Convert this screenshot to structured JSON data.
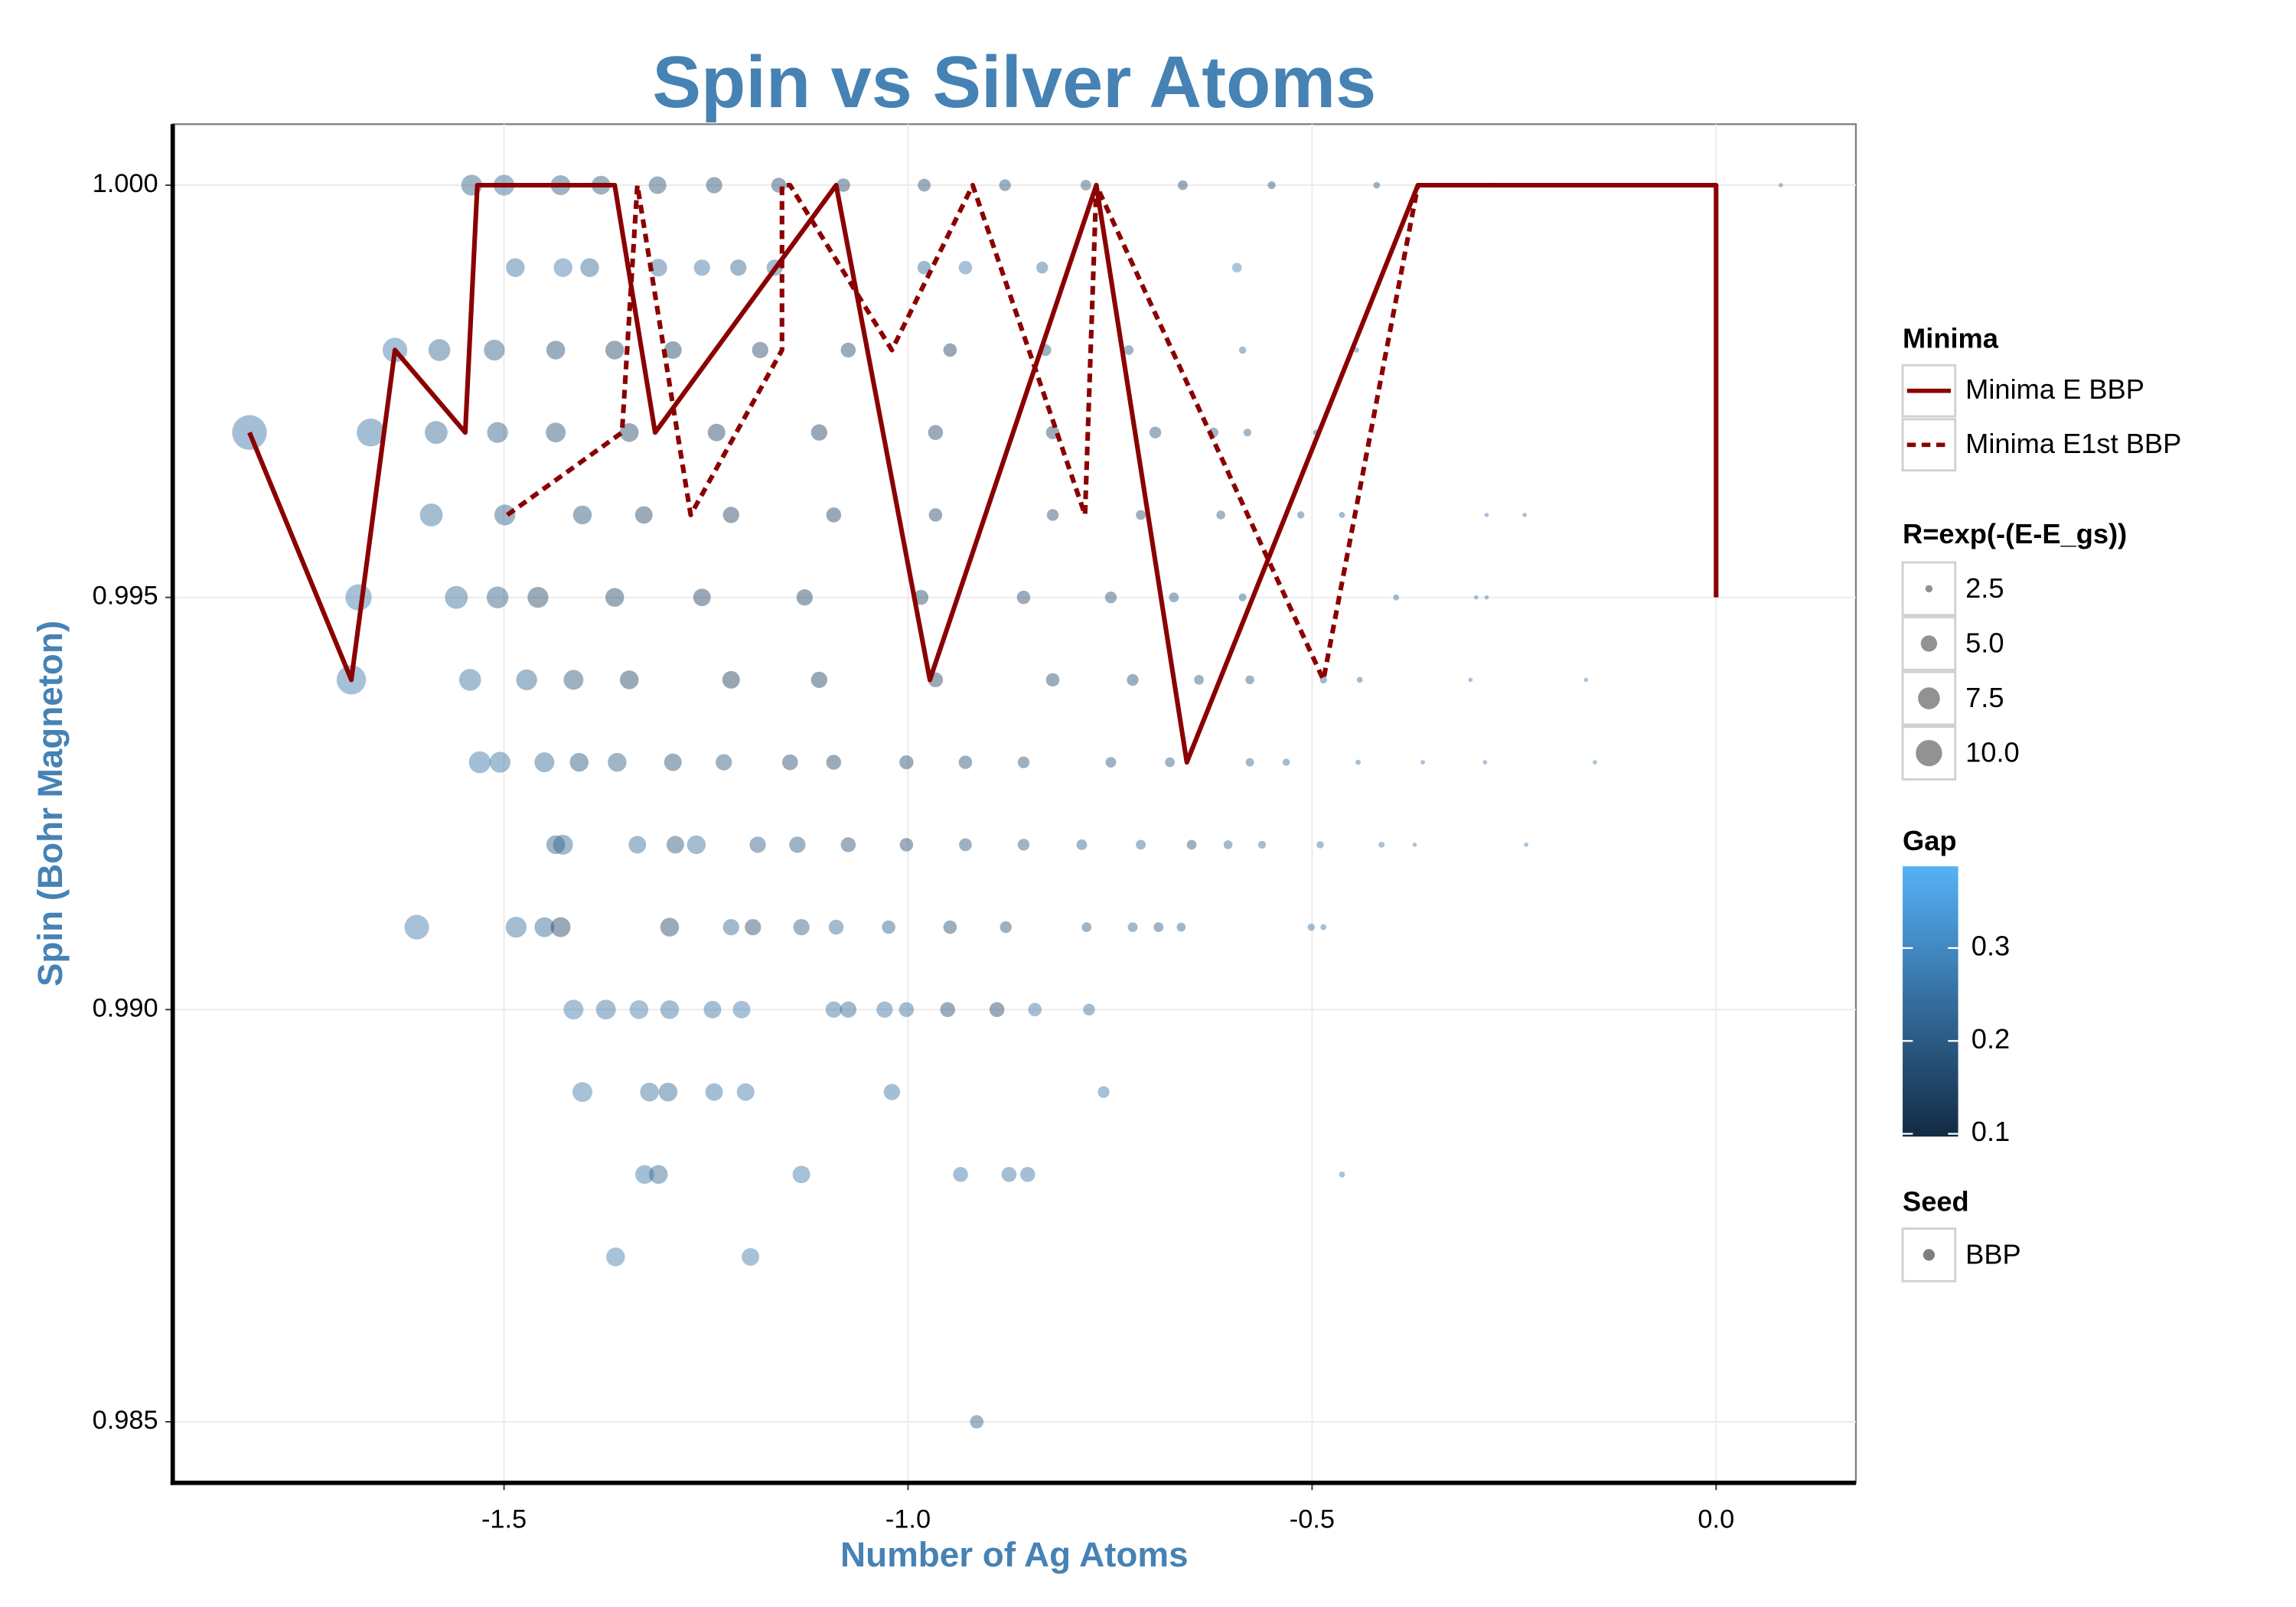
{
  "chart_data": {
    "type": "scatter",
    "title": "Spin vs Silver Atoms",
    "x_label": "Number of Ag Atoms",
    "y_label": "Spin (Bohr Magneton)",
    "xlim": [
      -1.91,
      0.173
    ],
    "ylim": [
      0.98426,
      1.00074
    ],
    "xticks": [
      -1.5,
      {
        "value": -1.0,
        "label": "-1.0"
      },
      -0.5,
      {
        "value": 0.0,
        "label": "0.0"
      }
    ],
    "yticks": [
      {
        "value": 0.985,
        "label": "0.985"
      },
      {
        "value": 0.99,
        "label": "0.990"
      },
      {
        "value": 0.995,
        "label": "0.995"
      },
      {
        "value": 1.0,
        "label": "1.000"
      }
    ],
    "grid": true,
    "series": [
      {
        "name": "BBP",
        "opacity": 0.45,
        "x": [
          -1.54,
          -1.5,
          -1.43,
          -1.38,
          -1.31,
          -1.24,
          -1.16,
          -1.08,
          -0.98,
          -0.88,
          -0.78,
          -0.66,
          -0.55,
          -0.42,
          -0.28,
          0.08,
          -1.486,
          -1.427,
          -1.394,
          -1.309,
          -1.255,
          -1.21,
          -1.165,
          -0.98,
          -0.929,
          -0.834,
          -0.593,
          -1.635,
          -1.58,
          -1.512,
          -1.436,
          -1.363,
          -1.291,
          -1.183,
          -1.074,
          -0.948,
          -0.83,
          -0.727,
          -0.586,
          -0.445,
          -1.815,
          -1.665,
          -1.584,
          -1.508,
          -1.436,
          -1.345,
          -1.237,
          -1.11,
          -0.966,
          -0.821,
          -0.694,
          -0.622,
          -0.58,
          -0.495,
          -1.59,
          -1.499,
          -1.403,
          -1.327,
          -1.219,
          -1.092,
          -0.966,
          -0.821,
          -0.712,
          -0.613,
          -0.514,
          -0.463,
          -0.284,
          -0.237,
          -1.68,
          -1.559,
          -1.508,
          -1.458,
          -1.363,
          -1.255,
          -1.128,
          -0.984,
          -0.857,
          -0.749,
          -0.671,
          -0.586,
          -0.396,
          -0.297,
          -0.284,
          -1.689,
          -1.542,
          -1.472,
          -1.414,
          -1.345,
          -1.219,
          -1.11,
          -0.966,
          -0.821,
          -0.722,
          -0.64,
          -0.577,
          -0.486,
          -0.441,
          -0.304,
          -0.161,
          -1.53,
          -1.505,
          -1.45,
          -1.407,
          -1.36,
          -1.291,
          -1.228,
          -1.146,
          -1.092,
          -1.002,
          -0.929,
          -0.857,
          -0.749,
          -0.676,
          -0.577,
          -0.532,
          -0.443,
          -0.363,
          -0.286,
          -0.15,
          -1.436,
          -1.427,
          -1.335,
          -1.288,
          -1.262,
          -1.186,
          -1.137,
          -1.074,
          -1.002,
          -0.929,
          -0.857,
          -0.785,
          -0.712,
          -0.649,
          -0.604,
          -0.562,
          -0.49,
          -0.414,
          -0.373,
          -0.235,
          -1.608,
          -1.485,
          -1.45,
          -1.43,
          -1.295,
          -1.219,
          -1.192,
          -1.132,
          -1.089,
          -1.024,
          -0.948,
          -0.879,
          -0.779,
          -0.722,
          -0.69,
          -0.662,
          -0.501,
          -0.486,
          -1.414,
          -1.374,
          -1.333,
          -1.295,
          -1.242,
          -1.206,
          -1.092,
          -1.074,
          -1.029,
          -1.002,
          -0.951,
          -0.89,
          -0.843,
          -0.776,
          -1.403,
          -1.32,
          -1.297,
          -1.24,
          -1.201,
          -1.02,
          -0.758,
          -1.326,
          -1.309,
          -1.132,
          -0.935,
          -0.875,
          -0.852,
          -0.463,
          -1.362,
          -1.195,
          -0.915
        ],
        "values": [
          1,
          1,
          1,
          1,
          1,
          1,
          1,
          1,
          1,
          1,
          1,
          1,
          1,
          1,
          1,
          1,
          0.999,
          0.999,
          0.999,
          0.999,
          0.999,
          0.999,
          0.999,
          0.999,
          0.999,
          0.999,
          0.999,
          0.998,
          0.998,
          0.998,
          0.998,
          0.998,
          0.998,
          0.998,
          0.998,
          0.998,
          0.998,
          0.998,
          0.998,
          0.998,
          0.997,
          0.997,
          0.997,
          0.997,
          0.997,
          0.997,
          0.997,
          0.997,
          0.997,
          0.997,
          0.997,
          0.997,
          0.997,
          0.997,
          0.996,
          0.996,
          0.996,
          0.996,
          0.996,
          0.996,
          0.996,
          0.996,
          0.996,
          0.996,
          0.996,
          0.996,
          0.996,
          0.996,
          0.995,
          0.995,
          0.995,
          0.995,
          0.995,
          0.995,
          0.995,
          0.995,
          0.995,
          0.995,
          0.995,
          0.995,
          0.995,
          0.995,
          0.995,
          0.994,
          0.994,
          0.994,
          0.994,
          0.994,
          0.994,
          0.994,
          0.994,
          0.994,
          0.994,
          0.994,
          0.994,
          0.994,
          0.994,
          0.994,
          0.994,
          0.993,
          0.993,
          0.993,
          0.993,
          0.993,
          0.993,
          0.993,
          0.993,
          0.993,
          0.993,
          0.993,
          0.993,
          0.993,
          0.993,
          0.993,
          0.993,
          0.993,
          0.993,
          0.993,
          0.993,
          0.992,
          0.992,
          0.992,
          0.992,
          0.992,
          0.992,
          0.992,
          0.992,
          0.992,
          0.992,
          0.992,
          0.992,
          0.992,
          0.992,
          0.992,
          0.992,
          0.992,
          0.992,
          0.992,
          0.992,
          0.991,
          0.991,
          0.991,
          0.991,
          0.991,
          0.991,
          0.991,
          0.991,
          0.991,
          0.991,
          0.991,
          0.991,
          0.991,
          0.991,
          0.991,
          0.991,
          0.991,
          0.991,
          0.99,
          0.99,
          0.99,
          0.99,
          0.99,
          0.99,
          0.99,
          0.99,
          0.99,
          0.99,
          0.99,
          0.99,
          0.99,
          0.99,
          0.989,
          0.989,
          0.989,
          0.989,
          0.989,
          0.989,
          0.989,
          0.988,
          0.988,
          0.988,
          0.988,
          0.988,
          0.988,
          0.988,
          0.987,
          0.987,
          0.985
        ],
        "sizes": [
          7,
          7,
          6.5,
          6,
          5.5,
          5,
          4.5,
          4,
          3.8,
          3.5,
          3.2,
          3,
          2.6,
          2.4,
          2.2,
          1.9,
          6,
          6,
          6,
          5.5,
          5,
          5,
          5,
          4,
          4,
          3.5,
          3,
          9,
          7.5,
          7,
          6,
          6,
          5.5,
          5,
          4.5,
          4,
          3.5,
          3,
          2.5,
          2.2,
          16,
          11,
          8,
          7,
          6.5,
          6,
          5.5,
          5,
          4.5,
          4,
          3.5,
          3,
          2.6,
          2.3,
          8,
          7,
          6,
          5.5,
          5,
          4.5,
          4,
          3.5,
          3,
          2.8,
          2.5,
          2.3,
          2,
          2,
          10,
          8,
          7.5,
          7,
          6,
          5.5,
          5,
          4.5,
          4,
          3.5,
          3,
          2.6,
          2.3,
          2,
          2,
          12,
          7.5,
          7,
          6.5,
          6,
          5.5,
          5,
          4.5,
          4,
          3.5,
          3,
          2.8,
          2.5,
          2.3,
          2,
          2,
          7.5,
          7,
          6.5,
          6,
          6,
          5.5,
          5,
          4.8,
          4.5,
          4.2,
          4,
          3.5,
          3.2,
          3,
          2.7,
          2.5,
          2.2,
          2,
          2,
          2,
          6,
          6.5,
          5.5,
          5.5,
          6,
          5,
          5,
          4.5,
          4,
          3.8,
          3.5,
          3.2,
          3,
          3,
          2.8,
          2.6,
          2.5,
          2.3,
          2.1,
          2,
          9,
          7,
          6.5,
          6.5,
          6,
          5,
          5,
          5,
          4.5,
          4,
          4,
          3.5,
          3,
          3,
          3,
          2.8,
          2.5,
          2.3,
          6.5,
          6.5,
          6,
          6,
          5.5,
          5.5,
          5,
          5,
          5,
          4.5,
          4.5,
          4.5,
          4,
          3.5,
          6.5,
          6,
          6,
          5.5,
          5.5,
          5,
          3.5,
          6,
          6,
          5.5,
          4.5,
          4.5,
          4.5,
          2.3,
          6,
          5.5,
          4
        ],
        "gap": [
          0.2,
          0.22,
          0.19,
          0.18,
          0.17,
          0.16,
          0.15,
          0.15,
          0.16,
          0.17,
          0.18,
          0.16,
          0.17,
          0.2,
          0.22,
          0.25,
          0.24,
          0.26,
          0.22,
          0.23,
          0.25,
          0.21,
          0.24,
          0.22,
          0.26,
          0.23,
          0.28,
          0.26,
          0.22,
          0.2,
          0.16,
          0.15,
          0.14,
          0.15,
          0.16,
          0.14,
          0.18,
          0.2,
          0.24,
          0.26,
          0.25,
          0.24,
          0.22,
          0.2,
          0.17,
          0.15,
          0.14,
          0.14,
          0.15,
          0.16,
          0.18,
          0.2,
          0.22,
          0.24,
          0.24,
          0.2,
          0.17,
          0.15,
          0.14,
          0.14,
          0.15,
          0.16,
          0.18,
          0.2,
          0.22,
          0.23,
          0.26,
          0.27,
          0.26,
          0.23,
          0.2,
          0.15,
          0.15,
          0.14,
          0.14,
          0.15,
          0.16,
          0.17,
          0.19,
          0.21,
          0.24,
          0.26,
          0.27,
          0.26,
          0.24,
          0.22,
          0.18,
          0.14,
          0.13,
          0.14,
          0.15,
          0.16,
          0.17,
          0.19,
          0.2,
          0.22,
          0.24,
          0.26,
          0.27,
          0.25,
          0.24,
          0.22,
          0.18,
          0.2,
          0.17,
          0.19,
          0.16,
          0.15,
          0.16,
          0.17,
          0.18,
          0.19,
          0.2,
          0.22,
          0.23,
          0.25,
          0.26,
          0.27,
          0.28,
          0.2,
          0.22,
          0.23,
          0.18,
          0.24,
          0.2,
          0.19,
          0.17,
          0.16,
          0.18,
          0.2,
          0.21,
          0.22,
          0.18,
          0.23,
          0.24,
          0.25,
          0.26,
          0.27,
          0.28,
          0.26,
          0.24,
          0.22,
          0.14,
          0.15,
          0.22,
          0.16,
          0.2,
          0.23,
          0.21,
          0.17,
          0.18,
          0.2,
          0.22,
          0.2,
          0.21,
          0.25,
          0.26,
          0.26,
          0.25,
          0.26,
          0.25,
          0.25,
          0.26,
          0.24,
          0.22,
          0.25,
          0.24,
          0.16,
          0.15,
          0.25,
          0.24,
          0.26,
          0.24,
          0.22,
          0.25,
          0.26,
          0.25,
          0.26,
          0.25,
          0.22,
          0.26,
          0.25,
          0.24,
          0.25,
          0.27,
          0.27,
          0.26,
          0.2
        ]
      }
    ],
    "lines": [
      {
        "name": "Minima E BBP",
        "color": "#8b0000",
        "dash": false,
        "x": [
          -1.815,
          -1.689,
          -1.635,
          -1.548,
          -1.533,
          -1.363,
          -1.313,
          -1.089,
          -0.973,
          -0.767,
          -0.655,
          -0.369,
          0,
          0
        ],
        "values": [
          0.997,
          0.994,
          0.998,
          0.997,
          1,
          1,
          0.997,
          1,
          0.994,
          1,
          0.993,
          1,
          1,
          0.995
        ]
      },
      {
        "name": "Minima E1st BBP",
        "color": "#8b0000",
        "dash": true,
        "x": [
          -1.496,
          -1.354,
          -1.335,
          -1.269,
          -1.156,
          -1.156,
          -1.146,
          -1.02,
          -0.92,
          -0.781,
          -0.767,
          -0.486,
          -0.369
        ],
        "values": [
          0.996,
          0.997,
          1,
          0.996,
          0.998,
          1,
          1,
          0.998,
          1,
          0.996,
          1,
          0.994,
          1
        ]
      }
    ],
    "line_legend_title": "Minima",
    "size_legend": {
      "title": "R=exp(-(E-E_gs))",
      "keys": [
        2.5,
        {
          "value": 5,
          "label": "5.0"
        },
        7.5,
        {
          "value": 10,
          "label": "10.0"
        }
      ]
    },
    "color_legend": {
      "title": "Gap",
      "lim": [
        0.097,
        0.388
      ],
      "ticks": [
        0.1,
        0.2,
        0.3
      ],
      "colors": [
        "#132B43",
        "#56B1F7"
      ]
    },
    "shape_legend_title": "Seed"
  }
}
